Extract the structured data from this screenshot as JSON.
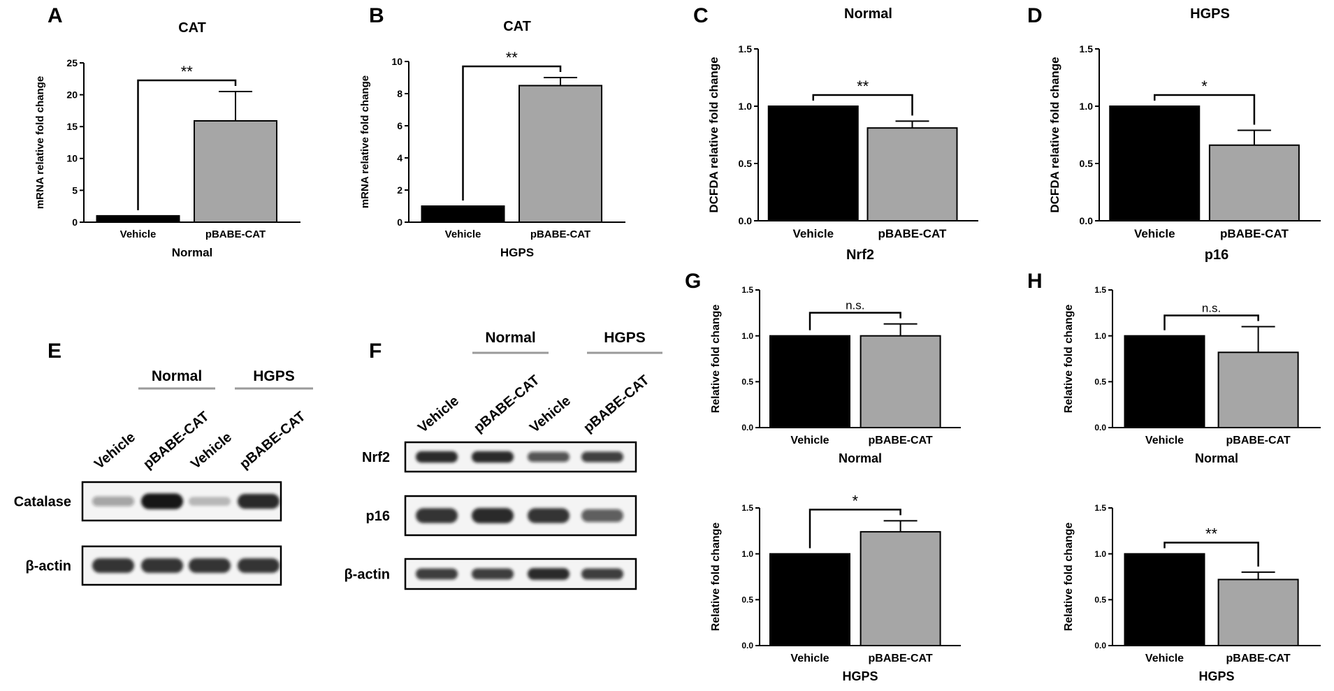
{
  "figure": {
    "panel_letters": [
      "A",
      "B",
      "C",
      "D",
      "E",
      "F",
      "G",
      "H"
    ],
    "colors": {
      "black_bar": "#000000",
      "gray_bar": "#a6a6a6",
      "axis": "#000000",
      "blot_bg": "#f4f4f4",
      "band": "#141414"
    }
  },
  "chart_data": [
    {
      "id": "A",
      "type": "bar",
      "title": "CAT",
      "ylabel": "mRNA relative fold change",
      "xlabel": "Normal",
      "categories": [
        "Vehicle",
        "pBABE-CAT"
      ],
      "values": [
        1.0,
        15.9
      ],
      "errors": [
        0.0,
        4.6
      ],
      "ylim": [
        0,
        25
      ],
      "yticks": [
        "0",
        "5",
        "10",
        "15",
        "20",
        "25"
      ],
      "significance": "**"
    },
    {
      "id": "B",
      "type": "bar",
      "title": "CAT",
      "ylabel": "mRNA relative fold change",
      "xlabel": "HGPS",
      "categories": [
        "Vehicle",
        "pBABE-CAT"
      ],
      "values": [
        1.0,
        8.5
      ],
      "errors": [
        0.0,
        0.5
      ],
      "ylim": [
        0,
        10
      ],
      "yticks": [
        "0",
        "2",
        "4",
        "6",
        "8",
        "10"
      ],
      "significance": "**"
    },
    {
      "id": "C",
      "type": "bar",
      "title": "Normal",
      "ylabel": "DCFDA relative fold change",
      "xlabel": "",
      "categories": [
        "Vehicle",
        "pBABE-CAT"
      ],
      "values": [
        1.0,
        0.81
      ],
      "errors": [
        0.0,
        0.06
      ],
      "ylim": [
        0,
        1.5
      ],
      "yticks": [
        "0.0",
        "0.5",
        "1.0",
        "1.5"
      ],
      "significance": "**"
    },
    {
      "id": "D",
      "type": "bar",
      "title": "HGPS",
      "ylabel": "DCFDA relative fold change",
      "xlabel": "",
      "categories": [
        "Vehicle",
        "pBABE-CAT"
      ],
      "values": [
        1.0,
        0.66
      ],
      "errors": [
        0.0,
        0.13
      ],
      "ylim": [
        0,
        1.5
      ],
      "yticks": [
        "0.0",
        "0.5",
        "1.0",
        "1.5"
      ],
      "significance": "*"
    },
    {
      "id": "G1",
      "type": "bar",
      "title": "Nrf2",
      "ylabel": "Relative fold change",
      "xlabel": "Normal",
      "categories": [
        "Vehicle",
        "pBABE-CAT"
      ],
      "values": [
        1.0,
        1.0
      ],
      "errors": [
        0.0,
        0.13
      ],
      "ylim": [
        0,
        1.5
      ],
      "yticks": [
        "0.0",
        "0.5",
        "1.0",
        "1.5"
      ],
      "significance": "n.s."
    },
    {
      "id": "H1",
      "type": "bar",
      "title": "p16",
      "ylabel": "Relative fold change",
      "xlabel": "Normal",
      "categories": [
        "Vehicle",
        "pBABE-CAT"
      ],
      "values": [
        1.0,
        0.82
      ],
      "errors": [
        0.0,
        0.28
      ],
      "ylim": [
        0,
        1.5
      ],
      "yticks": [
        "0.0",
        "0.5",
        "1.0",
        "1.5"
      ],
      "significance": "n.s."
    },
    {
      "id": "G2",
      "type": "bar",
      "title": "",
      "ylabel": "Relative fold change",
      "xlabel": "HGPS",
      "categories": [
        "Vehicle",
        "pBABE-CAT"
      ],
      "values": [
        1.0,
        1.24
      ],
      "errors": [
        0.0,
        0.12
      ],
      "ylim": [
        0,
        1.5
      ],
      "yticks": [
        "0.0",
        "0.5",
        "1.0",
        "1.5"
      ],
      "significance": "*"
    },
    {
      "id": "H2",
      "type": "bar",
      "title": "",
      "ylabel": "Relative fold change",
      "xlabel": "HGPS",
      "categories": [
        "Vehicle",
        "pBABE-CAT"
      ],
      "values": [
        1.0,
        0.72
      ],
      "errors": [
        0.0,
        0.08
      ],
      "ylim": [
        0,
        1.5
      ],
      "yticks": [
        "0.0",
        "0.5",
        "1.0",
        "1.5"
      ],
      "significance": "**"
    }
  ],
  "blots": {
    "E": {
      "groups": [
        "Normal",
        "HGPS"
      ],
      "lanes": [
        "Vehicle",
        "pBABE-CAT",
        "Vehicle",
        "pBABE-CAT"
      ],
      "rows": [
        {
          "label": "Catalase",
          "intensities": [
            0.25,
            1.0,
            0.12,
            0.9
          ]
        },
        {
          "label": "β-actin",
          "intensities": [
            0.85,
            0.85,
            0.85,
            0.85
          ]
        }
      ]
    },
    "F": {
      "groups": [
        "Normal",
        "HGPS"
      ],
      "lanes": [
        "Vehicle",
        "pBABE-CAT",
        "Vehicle",
        "pBABE-CAT"
      ],
      "rows": [
        {
          "label": "Nrf2",
          "intensities": [
            0.9,
            0.9,
            0.65,
            0.75
          ]
        },
        {
          "label": "p16",
          "intensities": [
            0.85,
            0.9,
            0.85,
            0.6
          ]
        },
        {
          "label": "β-actin",
          "intensities": [
            0.8,
            0.8,
            0.9,
            0.8
          ]
        }
      ]
    }
  }
}
